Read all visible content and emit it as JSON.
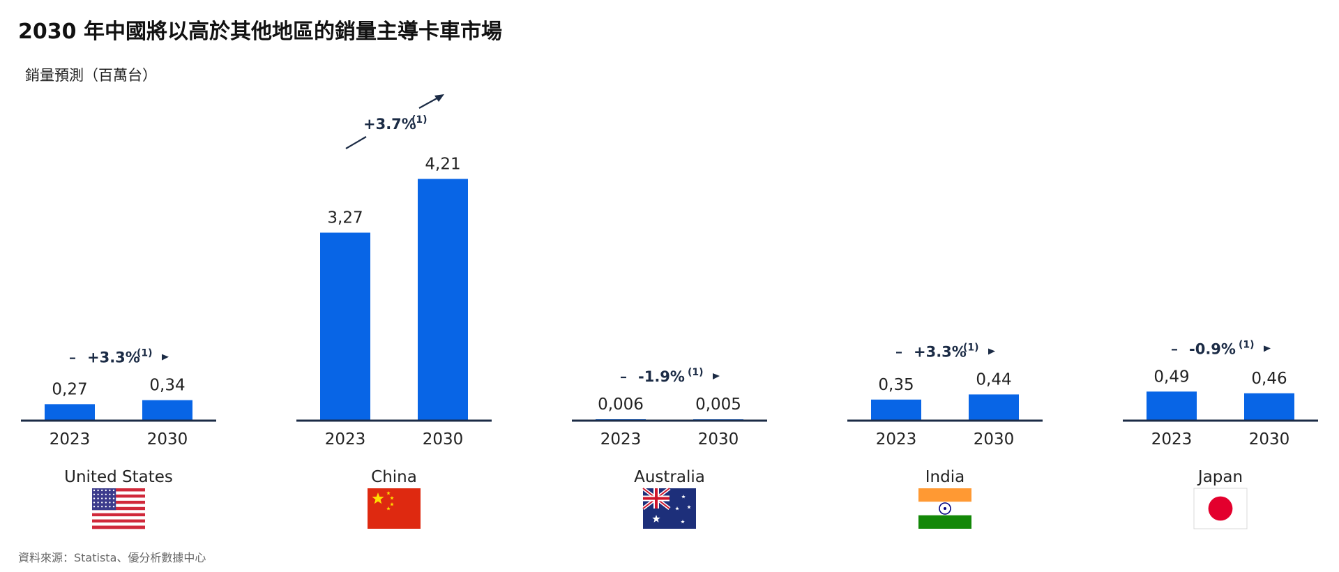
{
  "title": "2030 年中國將以高於其他地區的銷量主導卡車市場",
  "subtitle": "銷量預測（百萬台）",
  "source": "資料來源：Statista、優分析數據中心",
  "colors": {
    "bar": "#0865e6",
    "axis": "#1b2b45",
    "arrow": "#1b2b45"
  },
  "chart_data": {
    "type": "bar",
    "subtitle": "銷量預測（百萬台）",
    "years": [
      "2023",
      "2030"
    ],
    "groups": [
      {
        "country": "United States",
        "flag": "us-flag-icon",
        "values": [
          0.27,
          0.34
        ],
        "labels": [
          "0,27",
          "0,34"
        ],
        "cagr": "+3.3%",
        "cagr_note": "(1)",
        "trend": "flat"
      },
      {
        "country": "China",
        "flag": "china-flag-icon",
        "values": [
          3.27,
          4.21
        ],
        "labels": [
          "3,27",
          "4,21"
        ],
        "cagr": "+3.7%",
        "cagr_note": "(1)",
        "trend": "up"
      },
      {
        "country": "Australia",
        "flag": "australia-flag-icon",
        "values": [
          0.006,
          0.005
        ],
        "labels": [
          "0,006",
          "0,005"
        ],
        "cagr": "-1.9%",
        "cagr_note": "(1)",
        "trend": "flat"
      },
      {
        "country": "India",
        "flag": "india-flag-icon",
        "values": [
          0.35,
          0.44
        ],
        "labels": [
          "0,35",
          "0,44"
        ],
        "cagr": "+3.3%",
        "cagr_note": "(1)",
        "trend": "flat"
      },
      {
        "country": "Japan",
        "flag": "japan-flag-icon",
        "values": [
          0.49,
          0.46
        ],
        "labels": [
          "0,49",
          "0,46"
        ],
        "cagr": "-0.9%",
        "cagr_note": "(1)",
        "trend": "flat"
      }
    ]
  }
}
